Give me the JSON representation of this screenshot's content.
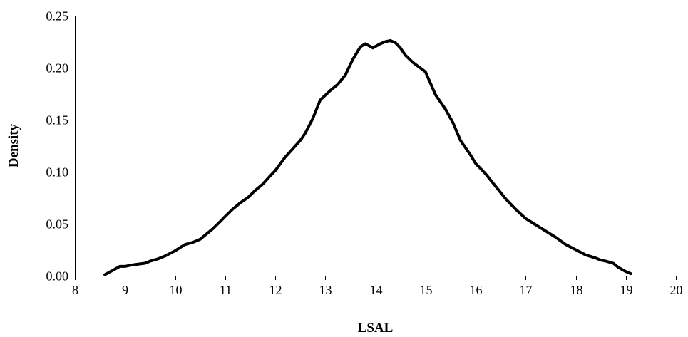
{
  "chart_data": {
    "type": "line",
    "title": "",
    "xlabel": "LSAL",
    "ylabel": "Density",
    "xlim": [
      8,
      20
    ],
    "ylim": [
      0,
      0.25
    ],
    "grid": "horizontal",
    "x_ticks": [
      "8",
      "9",
      "10",
      "11",
      "12",
      "13",
      "14",
      "15",
      "16",
      "17",
      "18",
      "19",
      "20"
    ],
    "y_ticks": [
      "0.00",
      "0.05",
      "0.10",
      "0.15",
      "0.20",
      "0.25"
    ],
    "series": [
      {
        "color": "#000000",
        "x": [
          8.6,
          8.75,
          8.9,
          9.0,
          9.1,
          9.25,
          9.4,
          9.5,
          9.65,
          9.8,
          10.0,
          10.2,
          10.35,
          10.5,
          10.6,
          10.75,
          10.9,
          11.0,
          11.15,
          11.3,
          11.45,
          11.6,
          11.75,
          11.9,
          12.0,
          12.2,
          12.35,
          12.5,
          12.6,
          12.75,
          12.9,
          13.1,
          13.25,
          13.4,
          13.55,
          13.7,
          13.8,
          13.95,
          14.1,
          14.2,
          14.3,
          14.4,
          14.5,
          14.6,
          14.75,
          15.0,
          15.2,
          15.4,
          15.55,
          15.7,
          15.9,
          16.0,
          16.2,
          16.4,
          16.6,
          16.8,
          17.0,
          17.2,
          17.4,
          17.6,
          17.8,
          18.0,
          18.2,
          18.4,
          18.5,
          18.6,
          18.75,
          18.85,
          19.0,
          19.1
        ],
        "y": [
          0.001,
          0.005,
          0.009,
          0.009,
          0.01,
          0.011,
          0.012,
          0.014,
          0.016,
          0.019,
          0.024,
          0.03,
          0.032,
          0.035,
          0.039,
          0.045,
          0.052,
          0.057,
          0.064,
          0.07,
          0.075,
          0.082,
          0.088,
          0.096,
          0.101,
          0.114,
          0.122,
          0.13,
          0.137,
          0.151,
          0.169,
          0.178,
          0.184,
          0.193,
          0.208,
          0.22,
          0.223,
          0.219,
          0.223,
          0.225,
          0.226,
          0.224,
          0.219,
          0.212,
          0.205,
          0.196,
          0.174,
          0.16,
          0.147,
          0.13,
          0.116,
          0.108,
          0.098,
          0.086,
          0.074,
          0.064,
          0.055,
          0.049,
          0.043,
          0.037,
          0.03,
          0.025,
          0.02,
          0.017,
          0.015,
          0.014,
          0.012,
          0.008,
          0.004,
          0.002
        ]
      }
    ]
  }
}
